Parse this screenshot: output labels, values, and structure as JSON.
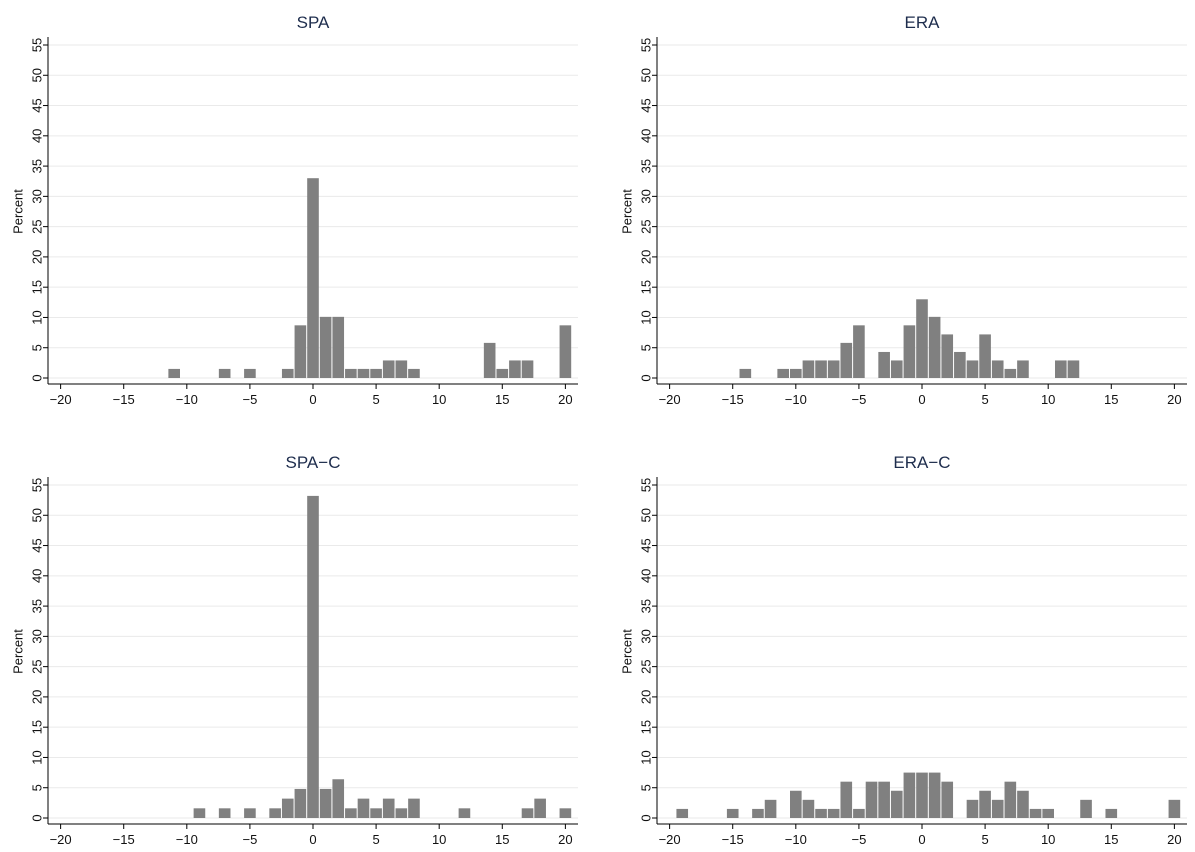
{
  "chart_data": [
    {
      "type": "bar",
      "title": "SPA",
      "ylabel": "Percent",
      "xlabel": "",
      "xlim": [
        -21,
        21
      ],
      "ylim": [
        0,
        55
      ],
      "xticks": [
        "-20",
        "-15",
        "-10",
        "-5",
        "0",
        "5",
        "10",
        "15",
        "20"
      ],
      "yticks": [
        "0",
        "5",
        "10",
        "15",
        "20",
        "25",
        "30",
        "35",
        "40",
        "45",
        "50",
        "55"
      ],
      "grid": true,
      "bar_color": "#808080",
      "bins": [
        {
          "x": -11,
          "y": 1.5
        },
        {
          "x": -7,
          "y": 1.5
        },
        {
          "x": -5,
          "y": 1.5
        },
        {
          "x": -2,
          "y": 1.5
        },
        {
          "x": -1,
          "y": 8.7
        },
        {
          "x": 0,
          "y": 33
        },
        {
          "x": 1,
          "y": 10.1
        },
        {
          "x": 2,
          "y": 10.1
        },
        {
          "x": 3,
          "y": 1.5
        },
        {
          "x": 4,
          "y": 1.5
        },
        {
          "x": 5,
          "y": 1.5
        },
        {
          "x": 6,
          "y": 2.9
        },
        {
          "x": 7,
          "y": 2.9
        },
        {
          "x": 8,
          "y": 1.5
        },
        {
          "x": 14,
          "y": 5.8
        },
        {
          "x": 15,
          "y": 1.5
        },
        {
          "x": 16,
          "y": 2.9
        },
        {
          "x": 17,
          "y": 2.9
        },
        {
          "x": 20,
          "y": 8.7
        }
      ]
    },
    {
      "type": "bar",
      "title": "ERA",
      "ylabel": "Percent",
      "xlabel": "",
      "xlim": [
        -21,
        21
      ],
      "ylim": [
        0,
        55
      ],
      "xticks": [
        "-20",
        "-15",
        "-10",
        "-5",
        "0",
        "5",
        "10",
        "15",
        "20"
      ],
      "yticks": [
        "0",
        "5",
        "10",
        "15",
        "20",
        "25",
        "30",
        "35",
        "40",
        "45",
        "50",
        "55"
      ],
      "grid": true,
      "bar_color": "#808080",
      "bins": [
        {
          "x": -14,
          "y": 1.5
        },
        {
          "x": -11,
          "y": 1.5
        },
        {
          "x": -10,
          "y": 1.5
        },
        {
          "x": -9,
          "y": 2.9
        },
        {
          "x": -8,
          "y": 2.9
        },
        {
          "x": -7,
          "y": 2.9
        },
        {
          "x": -6,
          "y": 5.8
        },
        {
          "x": -5,
          "y": 8.7
        },
        {
          "x": -3,
          "y": 4.3
        },
        {
          "x": -2,
          "y": 2.9
        },
        {
          "x": -1,
          "y": 8.7
        },
        {
          "x": 0,
          "y": 13
        },
        {
          "x": 1,
          "y": 10.1
        },
        {
          "x": 2,
          "y": 7.2
        },
        {
          "x": 3,
          "y": 4.3
        },
        {
          "x": 4,
          "y": 2.9
        },
        {
          "x": 5,
          "y": 7.2
        },
        {
          "x": 6,
          "y": 2.9
        },
        {
          "x": 7,
          "y": 1.5
        },
        {
          "x": 8,
          "y": 2.9
        },
        {
          "x": 11,
          "y": 2.9
        },
        {
          "x": 12,
          "y": 2.9
        }
      ]
    },
    {
      "type": "bar",
      "title": "SPA−C",
      "ylabel": "Percent",
      "xlabel": "",
      "xlim": [
        -21,
        21
      ],
      "ylim": [
        0,
        55
      ],
      "xticks": [
        "-20",
        "-15",
        "-10",
        "-5",
        "0",
        "5",
        "10",
        "15",
        "20"
      ],
      "yticks": [
        "0",
        "5",
        "10",
        "15",
        "20",
        "25",
        "30",
        "35",
        "40",
        "45",
        "50",
        "55"
      ],
      "grid": true,
      "bar_color": "#808080",
      "bins": [
        {
          "x": -9,
          "y": 1.6
        },
        {
          "x": -7,
          "y": 1.6
        },
        {
          "x": -5,
          "y": 1.6
        },
        {
          "x": -3,
          "y": 1.6
        },
        {
          "x": -2,
          "y": 3.2
        },
        {
          "x": -1,
          "y": 4.8
        },
        {
          "x": 0,
          "y": 53.2
        },
        {
          "x": 1,
          "y": 4.8
        },
        {
          "x": 2,
          "y": 6.4
        },
        {
          "x": 3,
          "y": 1.6
        },
        {
          "x": 4,
          "y": 3.2
        },
        {
          "x": 5,
          "y": 1.6
        },
        {
          "x": 6,
          "y": 3.2
        },
        {
          "x": 7,
          "y": 1.6
        },
        {
          "x": 8,
          "y": 3.2
        },
        {
          "x": 12,
          "y": 1.6
        },
        {
          "x": 17,
          "y": 1.6
        },
        {
          "x": 18,
          "y": 3.2
        },
        {
          "x": 20,
          "y": 1.6
        }
      ]
    },
    {
      "type": "bar",
      "title": "ERA−C",
      "ylabel": "Percent",
      "xlabel": "",
      "xlim": [
        -21,
        21
      ],
      "ylim": [
        0,
        55
      ],
      "xticks": [
        "-20",
        "-15",
        "-10",
        "-5",
        "0",
        "5",
        "10",
        "15",
        "20"
      ],
      "yticks": [
        "0",
        "5",
        "10",
        "15",
        "20",
        "25",
        "30",
        "35",
        "40",
        "45",
        "50",
        "55"
      ],
      "grid": true,
      "bar_color": "#808080",
      "bins": [
        {
          "x": -19,
          "y": 1.5
        },
        {
          "x": -15,
          "y": 1.5
        },
        {
          "x": -13,
          "y": 1.5
        },
        {
          "x": -12,
          "y": 3
        },
        {
          "x": -10,
          "y": 4.5
        },
        {
          "x": -9,
          "y": 3
        },
        {
          "x": -8,
          "y": 1.5
        },
        {
          "x": -7,
          "y": 1.5
        },
        {
          "x": -6,
          "y": 6
        },
        {
          "x": -5,
          "y": 1.5
        },
        {
          "x": -4,
          "y": 6
        },
        {
          "x": -3,
          "y": 6
        },
        {
          "x": -2,
          "y": 4.5
        },
        {
          "x": -1,
          "y": 7.5
        },
        {
          "x": 0,
          "y": 7.5
        },
        {
          "x": 1,
          "y": 7.5
        },
        {
          "x": 2,
          "y": 6
        },
        {
          "x": 4,
          "y": 3
        },
        {
          "x": 5,
          "y": 4.5
        },
        {
          "x": 6,
          "y": 3
        },
        {
          "x": 7,
          "y": 6
        },
        {
          "x": 8,
          "y": 4.5
        },
        {
          "x": 9,
          "y": 1.5
        },
        {
          "x": 10,
          "y": 1.5
        },
        {
          "x": 13,
          "y": 3
        },
        {
          "x": 15,
          "y": 1.5
        },
        {
          "x": 20,
          "y": 3
        }
      ]
    }
  ]
}
